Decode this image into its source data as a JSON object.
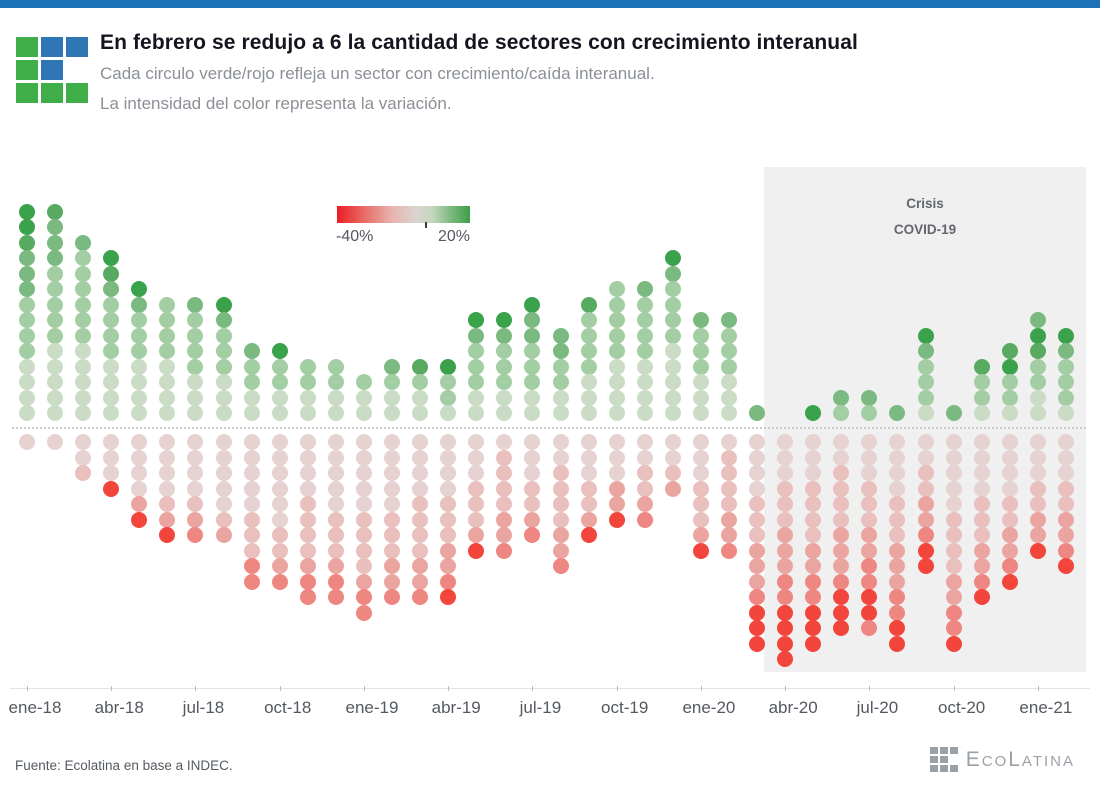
{
  "header": {
    "title": "En febrero se redujo a 6 la cantidad de sectores con crecimiento interanual",
    "subtitle1": "Cada circulo verde/rojo refleja un sector con crecimiento/caída interanual.",
    "subtitle2": "La intensidad del color representa la variación."
  },
  "colors": {
    "topbar": "#1e73b8",
    "logo_green": "#3fae49",
    "logo_blue": "#2f76b5",
    "logo_pattern": [
      "g",
      "b",
      "b",
      "g",
      "b",
      "x",
      "g",
      "g",
      "g"
    ],
    "covid_panel": "#f0f0f1"
  },
  "covid": {
    "line1": "Crisis",
    "line2": "COVID-19"
  },
  "legend": {
    "min_label": "-40%",
    "max_label": "20%"
  },
  "footer": {
    "source": "Fuente: Ecolatina en base a INDEC.",
    "brand": "EcoLatina"
  },
  "chart_data": {
    "type": "dot-strip",
    "title": "Sectores con crecimiento/caída interanual por mes",
    "description": "Cada punto es un sector (15 por mes). Verde = crecimiento interanual (arriba de la línea), rojo = caída (abajo). Nivel 1-5 = intensidad de la variación, escala -40% a 20%.",
    "x_tick_labels": [
      "ene-18",
      "abr-18",
      "jul-18",
      "oct-18",
      "ene-19",
      "abr-19",
      "jul-19",
      "oct-19",
      "ene-20",
      "abr-20",
      "jul-20",
      "oct-20",
      "ene-21"
    ],
    "color_scale": {
      "domain_pct": [
        -40,
        20
      ],
      "green_levels": {
        "1": "#cbdcc6",
        "2": "#a3cda3",
        "3": "#7ab97f",
        "4": "#58aa61",
        "5": "#3ba24c"
      },
      "red_levels": {
        "1": "#e5d2d1",
        "2": "#e9c0bd",
        "3": "#eba5a1",
        "4": "#ee8781",
        "5": "#f2453c"
      }
    },
    "covid_region": {
      "from_month": "abr-20_minus",
      "label": "Crisis COVID-19"
    },
    "columns": [
      {
        "month": "ene-18",
        "up": [
          5,
          5,
          4,
          3,
          3,
          3,
          2,
          2,
          2,
          2,
          1,
          1,
          1,
          1
        ],
        "down": [
          1
        ]
      },
      {
        "month": "feb-18",
        "up": [
          4,
          3,
          3,
          3,
          2,
          2,
          2,
          2,
          2,
          1,
          1,
          1,
          1,
          1
        ],
        "down": [
          1
        ]
      },
      {
        "month": "mar-18",
        "up": [
          3,
          2,
          2,
          2,
          2,
          2,
          2,
          1,
          1,
          1,
          1,
          1
        ],
        "down": [
          1,
          1,
          2
        ]
      },
      {
        "month": "abr-18",
        "up": [
          5,
          4,
          3,
          2,
          2,
          2,
          2,
          1,
          1,
          1,
          1
        ],
        "down": [
          1,
          1,
          1,
          5
        ]
      },
      {
        "month": "may-18",
        "up": [
          5,
          3,
          2,
          2,
          2,
          1,
          1,
          1,
          1
        ],
        "down": [
          1,
          1,
          1,
          1,
          3,
          5
        ]
      },
      {
        "month": "jun-18",
        "up": [
          2,
          2,
          2,
          2,
          1,
          1,
          1,
          1
        ],
        "down": [
          1,
          1,
          1,
          1,
          2,
          3,
          5
        ]
      },
      {
        "month": "jul-18",
        "up": [
          3,
          2,
          2,
          2,
          2,
          1,
          1,
          1
        ],
        "down": [
          1,
          1,
          1,
          1,
          2,
          3,
          4
        ]
      },
      {
        "month": "ago-18",
        "up": [
          5,
          3,
          2,
          2,
          2,
          1,
          1,
          1
        ],
        "down": [
          1,
          1,
          1,
          1,
          1,
          2,
          3
        ]
      },
      {
        "month": "sep-18",
        "up": [
          3,
          2,
          2,
          1,
          1
        ],
        "down": [
          1,
          1,
          1,
          1,
          1,
          2,
          2,
          2,
          4,
          4
        ]
      },
      {
        "month": "oct-18",
        "up": [
          5,
          2,
          2,
          1,
          1
        ],
        "down": [
          1,
          1,
          1,
          1,
          1,
          1,
          2,
          2,
          3,
          4
        ]
      },
      {
        "month": "nov-18",
        "up": [
          2,
          2,
          1,
          1
        ],
        "down": [
          1,
          1,
          1,
          1,
          2,
          2,
          2,
          2,
          3,
          4,
          4
        ]
      },
      {
        "month": "dic-18",
        "up": [
          2,
          2,
          1,
          1
        ],
        "down": [
          1,
          1,
          1,
          1,
          1,
          2,
          2,
          2,
          3,
          4,
          4
        ]
      },
      {
        "month": "ene-19",
        "up": [
          2,
          1,
          1
        ],
        "down": [
          1,
          1,
          1,
          1,
          1,
          2,
          2,
          2,
          2,
          3,
          4,
          4
        ]
      },
      {
        "month": "feb-19",
        "up": [
          3,
          2,
          1,
          1
        ],
        "down": [
          1,
          1,
          1,
          1,
          1,
          2,
          2,
          2,
          3,
          3,
          4
        ]
      },
      {
        "month": "mar-19",
        "up": [
          4,
          2,
          1,
          1
        ],
        "down": [
          1,
          1,
          1,
          1,
          2,
          2,
          2,
          2,
          3,
          3,
          4
        ]
      },
      {
        "month": "abr-19",
        "up": [
          5,
          2,
          2,
          1
        ],
        "down": [
          1,
          1,
          1,
          1,
          2,
          2,
          2,
          3,
          3,
          4,
          5
        ]
      },
      {
        "month": "may-19",
        "up": [
          5,
          3,
          2,
          2,
          2,
          1,
          1
        ],
        "down": [
          1,
          1,
          1,
          2,
          2,
          2,
          3,
          5
        ]
      },
      {
        "month": "jun-19",
        "up": [
          5,
          3,
          2,
          2,
          2,
          1,
          1
        ],
        "down": [
          1,
          2,
          2,
          2,
          2,
          3,
          3,
          4
        ]
      },
      {
        "month": "jul-19",
        "up": [
          5,
          3,
          3,
          2,
          2,
          2,
          1,
          1
        ],
        "down": [
          1,
          1,
          1,
          2,
          2,
          3,
          4
        ]
      },
      {
        "month": "ago-19",
        "up": [
          3,
          3,
          2,
          2,
          1,
          1
        ],
        "down": [
          1,
          1,
          2,
          2,
          2,
          2,
          3,
          3,
          4
        ]
      },
      {
        "month": "sep-19",
        "up": [
          4,
          2,
          2,
          2,
          2,
          1,
          1,
          1
        ],
        "down": [
          1,
          1,
          1,
          2,
          2,
          3,
          5
        ]
      },
      {
        "month": "oct-19",
        "up": [
          2,
          2,
          2,
          2,
          2,
          1,
          1,
          1,
          1
        ],
        "down": [
          1,
          1,
          1,
          3,
          3,
          5
        ]
      },
      {
        "month": "nov-19",
        "up": [
          3,
          2,
          2,
          2,
          2,
          1,
          1,
          1,
          1
        ],
        "down": [
          1,
          1,
          2,
          2,
          3,
          4
        ]
      },
      {
        "month": "dic-19",
        "up": [
          5,
          3,
          2,
          2,
          2,
          2,
          1,
          1,
          1,
          1,
          1
        ],
        "down": [
          1,
          1,
          2,
          3
        ]
      },
      {
        "month": "ene-20",
        "up": [
          3,
          2,
          2,
          2,
          1,
          1,
          1
        ],
        "down": [
          1,
          1,
          1,
          2,
          2,
          2,
          3,
          5
        ]
      },
      {
        "month": "feb-20",
        "up": [
          3,
          2,
          2,
          2,
          1,
          1,
          1
        ],
        "down": [
          1,
          2,
          2,
          2,
          2,
          3,
          3,
          4
        ]
      },
      {
        "month": "mar-20",
        "up": [
          3
        ],
        "down": [
          1,
          1,
          1,
          1,
          2,
          2,
          2,
          3,
          3,
          3,
          4,
          5,
          5,
          5
        ]
      },
      {
        "month": "abr-20",
        "up": [],
        "down": [
          1,
          1,
          1,
          2,
          2,
          2,
          3,
          3,
          3,
          4,
          4,
          5,
          5,
          5,
          5
        ]
      },
      {
        "month": "may-20",
        "up": [
          5
        ],
        "down": [
          1,
          1,
          1,
          2,
          2,
          2,
          2,
          3,
          3,
          4,
          4,
          5,
          5,
          5
        ]
      },
      {
        "month": "jun-20",
        "up": [
          3,
          2
        ],
        "down": [
          1,
          1,
          2,
          2,
          2,
          2,
          3,
          3,
          3,
          4,
          5,
          5,
          5
        ]
      },
      {
        "month": "jul-20",
        "up": [
          3,
          2
        ],
        "down": [
          1,
          1,
          1,
          2,
          2,
          2,
          3,
          3,
          4,
          4,
          5,
          5,
          4
        ]
      },
      {
        "month": "ago-20",
        "up": [
          3
        ],
        "down": [
          1,
          1,
          1,
          1,
          2,
          2,
          2,
          3,
          3,
          3,
          4,
          4,
          5,
          5
        ]
      },
      {
        "month": "sep-20",
        "up": [
          5,
          3,
          2,
          2,
          2,
          1
        ],
        "down": [
          1,
          1,
          2,
          2,
          3,
          3,
          4,
          5,
          5
        ]
      },
      {
        "month": "oct-20",
        "up": [
          3
        ],
        "down": [
          1,
          1,
          1,
          1,
          1,
          2,
          2,
          2,
          2,
          3,
          3,
          4,
          4,
          5
        ]
      },
      {
        "month": "nov-20",
        "up": [
          4,
          2,
          2,
          1
        ],
        "down": [
          1,
          1,
          1,
          1,
          2,
          2,
          2,
          3,
          3,
          4,
          5
        ]
      },
      {
        "month": "dic-20",
        "up": [
          4,
          5,
          2,
          2,
          1
        ],
        "down": [
          1,
          1,
          1,
          1,
          2,
          2,
          3,
          3,
          4,
          5
        ]
      },
      {
        "month": "ene-21",
        "up": [
          3,
          5,
          4,
          2,
          2,
          1,
          1
        ],
        "down": [
          1,
          1,
          1,
          2,
          2,
          3,
          3,
          5
        ]
      },
      {
        "month": "feb-21",
        "up": [
          5,
          3,
          2,
          2,
          2,
          1
        ],
        "down": [
          1,
          1,
          1,
          2,
          2,
          3,
          3,
          4,
          5
        ]
      }
    ]
  }
}
